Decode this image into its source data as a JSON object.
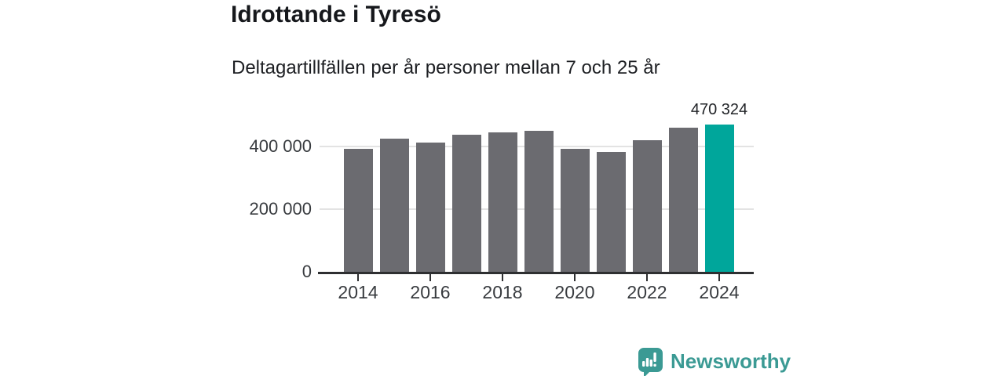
{
  "header": {
    "title": "Idrottande i Tyresö",
    "subtitle": "Deltagartillfällen per år personer mellan 7 och 25 år"
  },
  "chart_data": {
    "type": "bar",
    "title": "Idrottande i Tyresö",
    "subtitle": "Deltagartillfällen per år personer mellan 7 och 25 år",
    "categories": [
      2014,
      2015,
      2016,
      2017,
      2018,
      2019,
      2020,
      2021,
      2022,
      2023,
      2024
    ],
    "values": [
      392000,
      425000,
      413000,
      438500,
      445000,
      450000,
      393000,
      382000,
      421000,
      461000,
      470324
    ],
    "highlight_year": 2024,
    "annotation": {
      "year": 2024,
      "value": 470324,
      "label": "470 324"
    },
    "y_ticks": [
      {
        "value": 0,
        "label": "0"
      },
      {
        "value": 200000,
        "label": "200 000"
      },
      {
        "value": 400000,
        "label": "400 000"
      }
    ],
    "x_tick_labels": [
      "2014",
      "2016",
      "2018",
      "2020",
      "2022",
      "2024"
    ],
    "ylim": [
      0,
      492500
    ],
    "grid": true,
    "legend": "none",
    "colors": {
      "bar": "#6b6b70",
      "highlight": "#00a69b",
      "gridline": "#e3e3e3",
      "axis": "#2e2f31",
      "tick_text": "#383b3f",
      "annotation_text": "#222428"
    }
  },
  "footer": {
    "brand": "Newsworthy",
    "brand_color": "#3b9a94"
  }
}
